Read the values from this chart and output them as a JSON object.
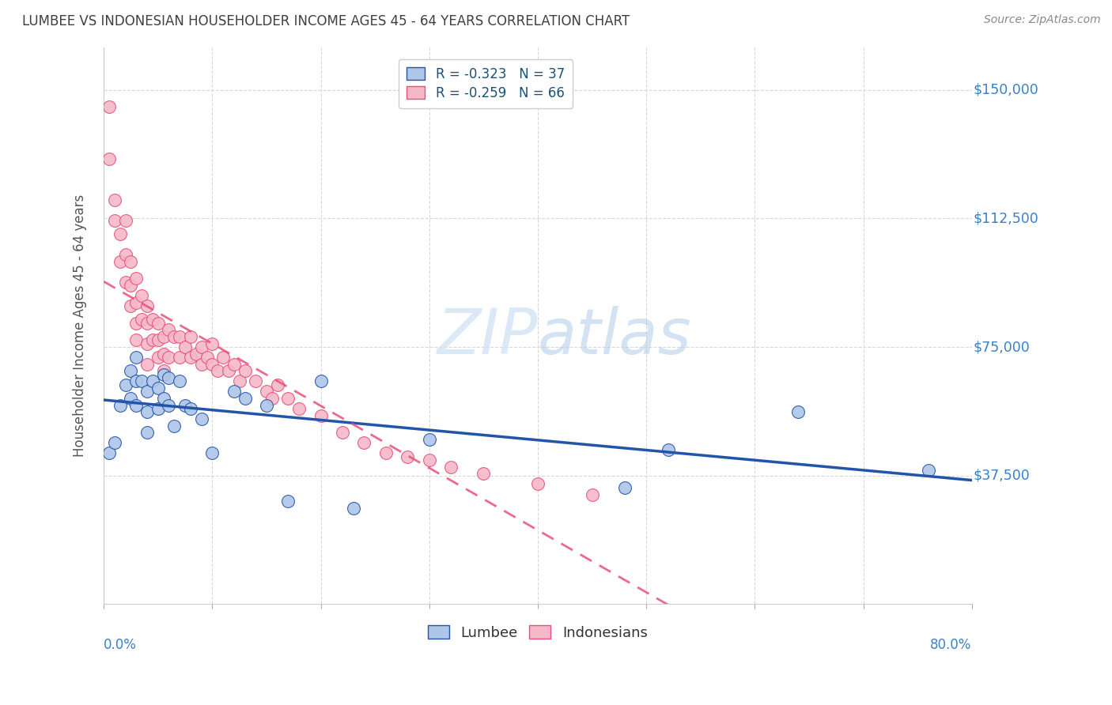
{
  "title": "LUMBEE VS INDONESIAN HOUSEHOLDER INCOME AGES 45 - 64 YEARS CORRELATION CHART",
  "source": "Source: ZipAtlas.com",
  "ylabel": "Householder Income Ages 45 - 64 years",
  "ytick_labels": [
    "$37,500",
    "$75,000",
    "$112,500",
    "$150,000"
  ],
  "ytick_values": [
    37500,
    75000,
    112500,
    150000
  ],
  "ymin": 0,
  "ymax": 162500,
  "xmin": 0.0,
  "xmax": 0.8,
  "legend_lumbee_r": "-0.323",
  "legend_lumbee_n": "37",
  "legend_indonesian_r": "-0.259",
  "legend_indonesian_n": "66",
  "lumbee_color": "#aec6e8",
  "lumbee_line_color": "#2255aa",
  "indonesian_color": "#f4b8c8",
  "indonesian_line_color": "#e8507a",
  "background_color": "#ffffff",
  "grid_color": "#d8d8d8",
  "title_color": "#404040",
  "source_color": "#888888",
  "axis_label_color": "#555555",
  "ytick_color": "#3a80c8",
  "watermark_color": "#cce0f5",
  "lumbee_x": [
    0.005,
    0.01,
    0.015,
    0.02,
    0.025,
    0.025,
    0.03,
    0.03,
    0.03,
    0.035,
    0.04,
    0.04,
    0.04,
    0.045,
    0.05,
    0.05,
    0.055,
    0.055,
    0.06,
    0.06,
    0.065,
    0.07,
    0.075,
    0.08,
    0.09,
    0.1,
    0.12,
    0.13,
    0.15,
    0.17,
    0.2,
    0.23,
    0.3,
    0.48,
    0.52,
    0.64,
    0.76
  ],
  "lumbee_y": [
    44000,
    47000,
    58000,
    64000,
    68000,
    60000,
    72000,
    65000,
    58000,
    65000,
    62000,
    56000,
    50000,
    65000,
    63000,
    57000,
    67000,
    60000,
    66000,
    58000,
    52000,
    65000,
    58000,
    57000,
    54000,
    44000,
    62000,
    60000,
    58000,
    30000,
    65000,
    28000,
    48000,
    34000,
    45000,
    56000,
    39000
  ],
  "indonesian_x": [
    0.005,
    0.005,
    0.01,
    0.01,
    0.015,
    0.015,
    0.02,
    0.02,
    0.02,
    0.025,
    0.025,
    0.025,
    0.03,
    0.03,
    0.03,
    0.03,
    0.035,
    0.035,
    0.04,
    0.04,
    0.04,
    0.04,
    0.045,
    0.045,
    0.05,
    0.05,
    0.05,
    0.055,
    0.055,
    0.055,
    0.06,
    0.06,
    0.065,
    0.07,
    0.07,
    0.075,
    0.08,
    0.08,
    0.085,
    0.09,
    0.09,
    0.095,
    0.1,
    0.1,
    0.105,
    0.11,
    0.115,
    0.12,
    0.125,
    0.13,
    0.14,
    0.15,
    0.155,
    0.16,
    0.17,
    0.18,
    0.2,
    0.22,
    0.24,
    0.26,
    0.28,
    0.3,
    0.32,
    0.35,
    0.4,
    0.45
  ],
  "indonesian_y": [
    130000,
    145000,
    118000,
    112000,
    108000,
    100000,
    112000,
    102000,
    94000,
    100000,
    93000,
    87000,
    95000,
    88000,
    82000,
    77000,
    90000,
    83000,
    87000,
    82000,
    76000,
    70000,
    83000,
    77000,
    82000,
    77000,
    72000,
    78000,
    73000,
    68000,
    80000,
    72000,
    78000,
    78000,
    72000,
    75000,
    78000,
    72000,
    73000,
    75000,
    70000,
    72000,
    76000,
    70000,
    68000,
    72000,
    68000,
    70000,
    65000,
    68000,
    65000,
    62000,
    60000,
    64000,
    60000,
    57000,
    55000,
    50000,
    47000,
    44000,
    43000,
    42000,
    40000,
    38000,
    35000,
    32000
  ]
}
